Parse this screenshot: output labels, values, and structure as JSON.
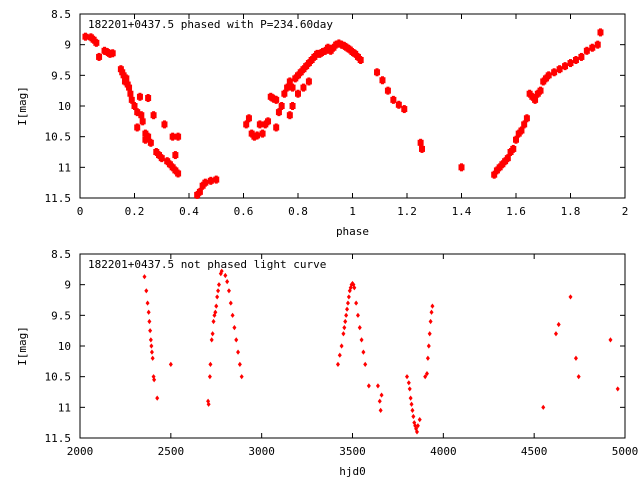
{
  "colors": {
    "points": "#ff0000",
    "axes": "#000000",
    "background": "#ffffff"
  },
  "chart_data": [
    {
      "type": "scatter",
      "title": "182201+0437.5 phased with P=234.60day",
      "xlabel": "phase",
      "ylabel": "I[mag]",
      "xlim": [
        0,
        2
      ],
      "ylim": [
        11.5,
        8.5
      ],
      "y_inverted": true,
      "grid": false,
      "legend": "none",
      "x_ticks": [
        "0",
        "0.2",
        "0.4",
        "0.6",
        "0.8",
        "1",
        "1.2",
        "1.4",
        "1.6",
        "1.8",
        "2"
      ],
      "y_ticks": [
        "8.5",
        "9",
        "9.5",
        "10",
        "10.5",
        "11",
        "11.5"
      ],
      "series": [
        {
          "marker": "filled-square",
          "points": [
            [
              0.02,
              8.87
            ],
            [
              0.04,
              8.88
            ],
            [
              0.05,
              8.92
            ],
            [
              0.06,
              8.97
            ],
            [
              0.07,
              9.2
            ],
            [
              0.09,
              9.1
            ],
            [
              0.1,
              9.12
            ],
            [
              0.11,
              9.15
            ],
            [
              0.12,
              9.14
            ],
            [
              0.15,
              9.4
            ],
            [
              0.155,
              9.45
            ],
            [
              0.16,
              9.5
            ],
            [
              0.165,
              9.6
            ],
            [
              0.17,
              9.55
            ],
            [
              0.175,
              9.65
            ],
            [
              0.18,
              9.7
            ],
            [
              0.185,
              9.8
            ],
            [
              0.19,
              9.9
            ],
            [
              0.2,
              10.0
            ],
            [
              0.21,
              10.1
            ],
            [
              0.21,
              10.35
            ],
            [
              0.22,
              9.85
            ],
            [
              0.225,
              10.15
            ],
            [
              0.23,
              10.25
            ],
            [
              0.24,
              10.45
            ],
            [
              0.24,
              10.55
            ],
            [
              0.25,
              10.5
            ],
            [
              0.25,
              9.87
            ],
            [
              0.26,
              10.6
            ],
            [
              0.27,
              10.15
            ],
            [
              0.28,
              10.75
            ],
            [
              0.29,
              10.8
            ],
            [
              0.3,
              10.85
            ],
            [
              0.31,
              10.3
            ],
            [
              0.32,
              10.9
            ],
            [
              0.33,
              10.95
            ],
            [
              0.34,
              11.0
            ],
            [
              0.35,
              11.05
            ],
            [
              0.36,
              11.1
            ],
            [
              0.34,
              10.5
            ],
            [
              0.35,
              10.8
            ],
            [
              0.36,
              10.5
            ],
            [
              0.43,
              11.45
            ],
            [
              0.44,
              11.4
            ],
            [
              0.45,
              11.3
            ],
            [
              0.46,
              11.25
            ],
            [
              0.48,
              11.22
            ],
            [
              0.5,
              11.2
            ],
            [
              0.61,
              10.3
            ],
            [
              0.62,
              10.2
            ],
            [
              0.63,
              10.45
            ],
            [
              0.64,
              10.5
            ],
            [
              0.65,
              10.48
            ],
            [
              0.66,
              10.3
            ],
            [
              0.67,
              10.45
            ],
            [
              0.68,
              10.3
            ],
            [
              0.69,
              10.25
            ],
            [
              0.7,
              9.85
            ],
            [
              0.71,
              9.88
            ],
            [
              0.72,
              9.9
            ],
            [
              0.73,
              10.1
            ],
            [
              0.74,
              10.0
            ],
            [
              0.75,
              9.8
            ],
            [
              0.76,
              9.7
            ],
            [
              0.77,
              9.6
            ],
            [
              0.78,
              9.7
            ],
            [
              0.79,
              9.55
            ],
            [
              0.8,
              9.5
            ],
            [
              0.81,
              9.45
            ],
            [
              0.82,
              9.4
            ],
            [
              0.83,
              9.35
            ],
            [
              0.84,
              9.3
            ],
            [
              0.85,
              9.25
            ],
            [
              0.86,
              9.2
            ],
            [
              0.87,
              9.15
            ],
            [
              0.88,
              9.15
            ],
            [
              0.89,
              9.12
            ],
            [
              0.9,
              9.1
            ],
            [
              0.91,
              9.05
            ],
            [
              0.92,
              9.1
            ],
            [
              0.93,
              9.05
            ],
            [
              0.94,
              9.0
            ],
            [
              0.95,
              8.98
            ],
            [
              0.96,
              9.0
            ],
            [
              0.97,
              9.02
            ],
            [
              0.98,
              9.05
            ],
            [
              0.99,
              9.08
            ],
            [
              1.0,
              9.12
            ],
            [
              1.01,
              9.15
            ],
            [
              1.02,
              9.2
            ],
            [
              1.03,
              9.25
            ],
            [
              0.72,
              10.35
            ],
            [
              0.77,
              10.15
            ],
            [
              0.78,
              10.0
            ],
            [
              0.8,
              9.8
            ],
            [
              0.82,
              9.7
            ],
            [
              0.84,
              9.6
            ],
            [
              1.09,
              9.45
            ],
            [
              1.11,
              9.58
            ],
            [
              1.13,
              9.75
            ],
            [
              1.15,
              9.9
            ],
            [
              1.17,
              9.98
            ],
            [
              1.19,
              10.05
            ],
            [
              1.25,
              10.6
            ],
            [
              1.255,
              10.7
            ],
            [
              1.4,
              11.0
            ],
            [
              1.52,
              11.12
            ],
            [
              1.53,
              11.05
            ],
            [
              1.54,
              11.0
            ],
            [
              1.55,
              10.95
            ],
            [
              1.56,
              10.9
            ],
            [
              1.57,
              10.85
            ],
            [
              1.58,
              10.75
            ],
            [
              1.59,
              10.7
            ],
            [
              1.6,
              10.55
            ],
            [
              1.61,
              10.45
            ],
            [
              1.62,
              10.4
            ],
            [
              1.63,
              10.3
            ],
            [
              1.64,
              10.2
            ],
            [
              1.65,
              9.8
            ],
            [
              1.66,
              9.85
            ],
            [
              1.67,
              9.9
            ],
            [
              1.68,
              9.8
            ],
            [
              1.69,
              9.75
            ],
            [
              1.7,
              9.6
            ],
            [
              1.71,
              9.55
            ],
            [
              1.72,
              9.5
            ],
            [
              1.74,
              9.45
            ],
            [
              1.76,
              9.4
            ],
            [
              1.78,
              9.35
            ],
            [
              1.8,
              9.3
            ],
            [
              1.82,
              9.25
            ],
            [
              1.84,
              9.2
            ],
            [
              1.86,
              9.1
            ],
            [
              1.88,
              9.05
            ],
            [
              1.9,
              9.0
            ],
            [
              1.91,
              8.8
            ]
          ]
        }
      ]
    },
    {
      "type": "scatter",
      "title": "182201+0437.5 not phased light curve",
      "xlabel": "hjd0",
      "ylabel": "I[mag]",
      "xlim": [
        2000,
        5000
      ],
      "ylim": [
        11.5,
        8.5
      ],
      "y_inverted": true,
      "grid": false,
      "legend": "none",
      "x_ticks": [
        "2000",
        "2500",
        "3000",
        "3500",
        "4000",
        "4500",
        "5000"
      ],
      "y_ticks": [
        "8.5",
        "9",
        "9.5",
        "10",
        "10.5",
        "11",
        "11.5"
      ],
      "series": [
        {
          "marker": "filled-diamond",
          "points": [
            [
              2355,
              8.87
            ],
            [
              2365,
              9.1
            ],
            [
              2372,
              9.3
            ],
            [
              2378,
              9.45
            ],
            [
              2382,
              9.6
            ],
            [
              2386,
              9.75
            ],
            [
              2390,
              9.9
            ],
            [
              2393,
              10.0
            ],
            [
              2396,
              10.1
            ],
            [
              2400,
              10.2
            ],
            [
              2405,
              10.5
            ],
            [
              2408,
              10.55
            ],
            [
              2425,
              10.85
            ],
            [
              2500,
              10.3
            ],
            [
              2705,
              10.9
            ],
            [
              2708,
              10.95
            ],
            [
              2715,
              10.5
            ],
            [
              2718,
              10.3
            ],
            [
              2725,
              9.9
            ],
            [
              2730,
              9.8
            ],
            [
              2735,
              9.6
            ],
            [
              2740,
              9.5
            ],
            [
              2745,
              9.45
            ],
            [
              2750,
              9.35
            ],
            [
              2755,
              9.2
            ],
            [
              2760,
              9.1
            ],
            [
              2765,
              9.0
            ],
            [
              2775,
              8.82
            ],
            [
              2780,
              8.78
            ],
            [
              2800,
              8.85
            ],
            [
              2810,
              8.95
            ],
            [
              2820,
              9.1
            ],
            [
              2830,
              9.3
            ],
            [
              2840,
              9.5
            ],
            [
              2850,
              9.7
            ],
            [
              2860,
              9.9
            ],
            [
              2870,
              10.1
            ],
            [
              2880,
              10.3
            ],
            [
              2890,
              10.5
            ],
            [
              3420,
              10.3
            ],
            [
              3430,
              10.15
            ],
            [
              3440,
              10.0
            ],
            [
              3450,
              9.8
            ],
            [
              3455,
              9.7
            ],
            [
              3460,
              9.6
            ],
            [
              3465,
              9.5
            ],
            [
              3470,
              9.4
            ],
            [
              3475,
              9.3
            ],
            [
              3480,
              9.2
            ],
            [
              3485,
              9.1
            ],
            [
              3490,
              9.05
            ],
            [
              3495,
              9.0
            ],
            [
              3500,
              8.98
            ],
            [
              3505,
              9.0
            ],
            [
              3510,
              9.05
            ],
            [
              3520,
              9.3
            ],
            [
              3530,
              9.5
            ],
            [
              3540,
              9.7
            ],
            [
              3550,
              9.9
            ],
            [
              3560,
              10.1
            ],
            [
              3570,
              10.3
            ],
            [
              3590,
              10.65
            ],
            [
              3640,
              10.65
            ],
            [
              3650,
              10.9
            ],
            [
              3655,
              11.05
            ],
            [
              3660,
              10.8
            ],
            [
              3800,
              10.5
            ],
            [
              3810,
              10.6
            ],
            [
              3815,
              10.7
            ],
            [
              3820,
              10.85
            ],
            [
              3825,
              10.95
            ],
            [
              3830,
              11.05
            ],
            [
              3835,
              11.15
            ],
            [
              3840,
              11.25
            ],
            [
              3845,
              11.3
            ],
            [
              3850,
              11.35
            ],
            [
              3855,
              11.4
            ],
            [
              3860,
              11.3
            ],
            [
              3870,
              11.2
            ],
            [
              3900,
              10.5
            ],
            [
              3910,
              10.45
            ],
            [
              3915,
              10.2
            ],
            [
              3920,
              10.0
            ],
            [
              3925,
              9.8
            ],
            [
              3930,
              9.6
            ],
            [
              3935,
              9.45
            ],
            [
              3940,
              9.35
            ],
            [
              4550,
              11.0
            ],
            [
              4620,
              9.8
            ],
            [
              4635,
              9.65
            ],
            [
              4700,
              9.2
            ],
            [
              4730,
              10.2
            ],
            [
              4745,
              10.5
            ],
            [
              4920,
              9.9
            ],
            [
              4960,
              10.7
            ]
          ]
        }
      ]
    }
  ]
}
